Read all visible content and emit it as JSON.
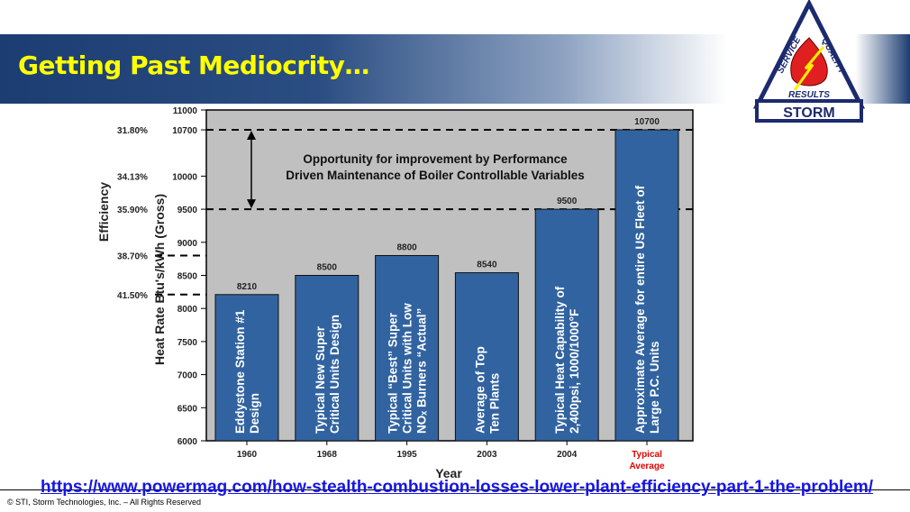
{
  "slide": {
    "title": "Getting Past Mediocrity…",
    "logo": {
      "top_left": "SERVICE",
      "top_right": "QUALITY",
      "bottom": "RESULTS",
      "name": "STORM"
    },
    "link": "https://www.powermag.com/how-stealth-combustion-losses-lower-plant-efficiency-part-1-the-problem/",
    "copyright": "© STI, Storm Technologies, Inc. – All Rights Reserved"
  },
  "chart_data": {
    "type": "bar",
    "xlabel": "Year",
    "ylabel": "Heat Rate Btu's/kWh (Gross)",
    "ylabel2": "Efficiency",
    "ylim": [
      6000,
      11000
    ],
    "yticks": [
      6000,
      6500,
      7000,
      7500,
      8000,
      8500,
      9000,
      9500,
      10000,
      10700,
      11000
    ],
    "categories": [
      "1960",
      "1968",
      "1995",
      "2003",
      "2004",
      "Typical Average"
    ],
    "values": [
      8210,
      8500,
      8800,
      8540,
      9500,
      10700
    ],
    "bar_labels": [
      [
        "Eddystone Station #1",
        "Design"
      ],
      [
        "Typical New Super",
        "Critical Units Design"
      ],
      [
        "Typical “Best” Super",
        "Critical Units with Low",
        "NOₓ Burners “Actual”"
      ],
      [
        "Average of Top",
        "Ten Plants"
      ],
      [
        "Typical Heat Capability of",
        "2,400psi, 1000/1000°F"
      ],
      [
        "Approximate Average for entire US Fleet of",
        "Large P.C. Units"
      ]
    ],
    "efficiency_marks": [
      {
        "value": 10700,
        "label": "31.80%"
      },
      {
        "value": 10000,
        "label": "34.13%"
      },
      {
        "value": 9500,
        "label": "35.90%"
      },
      {
        "value": 8800,
        "label": "38.70%"
      },
      {
        "value": 8210,
        "label": "41.50%"
      }
    ],
    "dashed_lines": [
      10700,
      9500,
      8800,
      8210
    ],
    "annotation": [
      "Opportunity for improvement by Performance",
      "Driven Maintenance of Boiler Controllable Variables"
    ],
    "colors": {
      "bar": "#3163a0",
      "plot_bg": "#c0c0c0",
      "highlight_label": "#e00000"
    }
  }
}
